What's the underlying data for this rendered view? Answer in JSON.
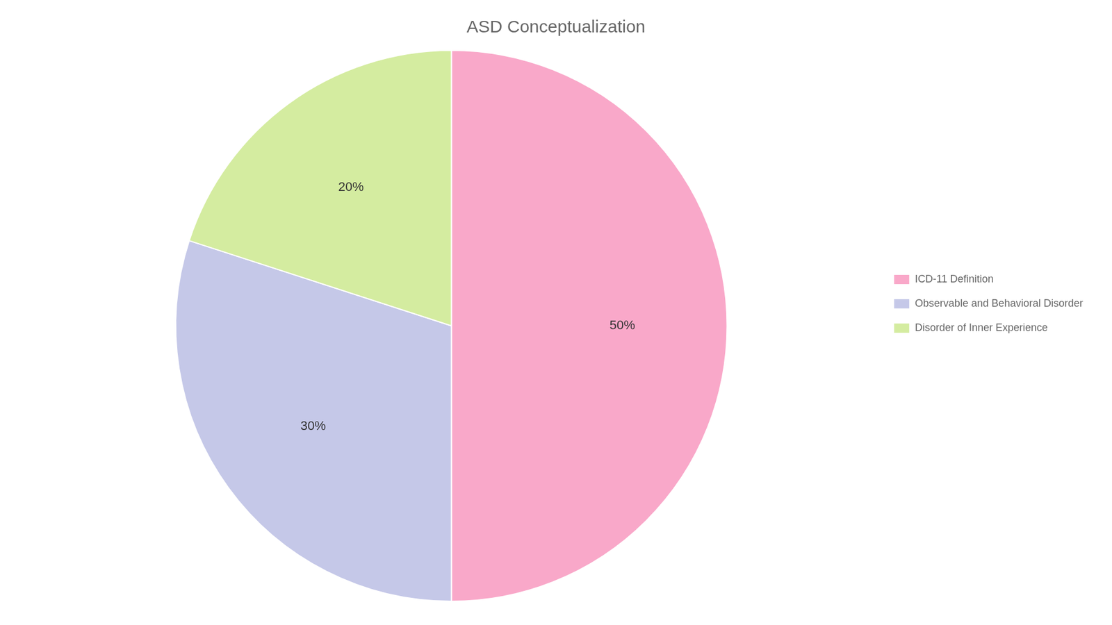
{
  "chart_data": {
    "type": "pie",
    "title": "ASD Conceptualization",
    "categories": [
      "ICD-11 Definition",
      "Observable and Behavioral Disorder",
      "Disorder of Inner Experience"
    ],
    "values": [
      50,
      30,
      20
    ],
    "value_labels": [
      "50%",
      "30%",
      "20%"
    ],
    "colors": [
      "#F9A8C9",
      "#C5C8E8",
      "#D4ECA0"
    ],
    "data_labels": true,
    "legend": "right"
  }
}
